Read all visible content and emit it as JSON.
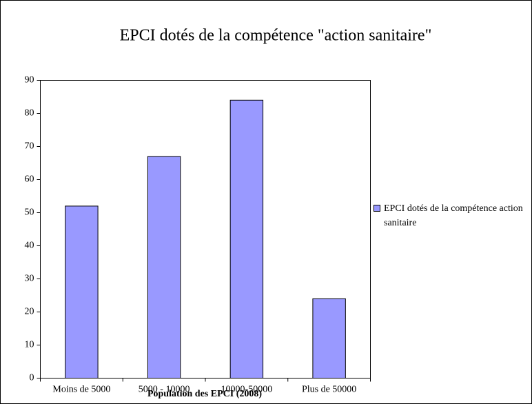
{
  "chart_data": {
    "type": "bar",
    "title": "EPCI dotés de la compétence \"action sanitaire\"",
    "x_label": "Population des EPCI (2008)",
    "categories": [
      "Moins de 5000",
      "5000 - 10000",
      "10000-50000",
      "Plus de 50000"
    ],
    "series": [
      {
        "name": "EPCI dotés de la compétence action sanitaire",
        "color": "#9999ff",
        "values": [
          52,
          67,
          84,
          24
        ]
      }
    ],
    "ylim": [
      0,
      90
    ],
    "yticks": [
      0,
      10,
      20,
      30,
      40,
      50,
      60,
      70,
      80,
      90
    ],
    "grid": false,
    "legend": "right"
  }
}
